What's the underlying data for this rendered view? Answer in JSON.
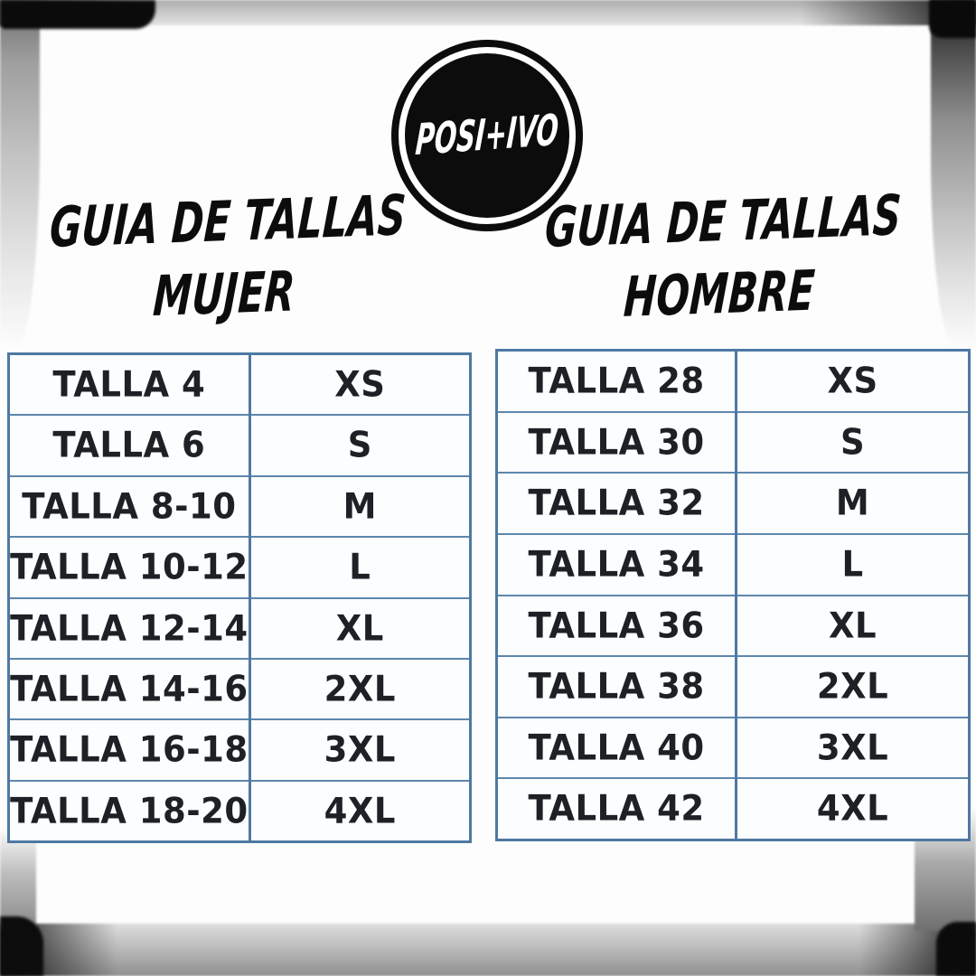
{
  "logo": {
    "brand": "POSI+IVO"
  },
  "titles": {
    "mujer": {
      "line1": "GUIA DE TALLAS",
      "line2": "MUJER"
    },
    "hombre": {
      "line1": "GUIA DE TALLAS",
      "line2": "HOMBRE"
    }
  },
  "tables": {
    "mujer": {
      "rows": [
        {
          "talla": "TALLA 4",
          "size": "XS"
        },
        {
          "talla": "TALLA 6",
          "size": "S"
        },
        {
          "talla": "TALLA 8-10",
          "size": "M"
        },
        {
          "talla": "TALLA 10-12",
          "size": "L"
        },
        {
          "talla": "TALLA 12-14",
          "size": "XL"
        },
        {
          "talla": "TALLA 14-16",
          "size": "2XL"
        },
        {
          "talla": "TALLA 16-18",
          "size": "3XL"
        },
        {
          "talla": "TALLA 18-20",
          "size": "4XL"
        }
      ]
    },
    "hombre": {
      "rows": [
        {
          "talla": "TALLA 28",
          "size": "XS"
        },
        {
          "talla": "TALLA 30",
          "size": "S"
        },
        {
          "talla": "TALLA 32",
          "size": "M"
        },
        {
          "talla": "TALLA 34",
          "size": "L"
        },
        {
          "talla": "TALLA 36",
          "size": "XL"
        },
        {
          "talla": "TALLA 38",
          "size": "2XL"
        },
        {
          "talla": "TALLA 40",
          "size": "3XL"
        },
        {
          "talla": "TALLA 42",
          "size": "4XL"
        }
      ]
    }
  },
  "colors": {
    "table_border": "#4e79a2",
    "table_line": "#5d87ad",
    "cell_text": "#1d2126",
    "title_text": "#0c0c0c",
    "logo_bg": "#0c0c0c",
    "logo_text": "#ffffff"
  }
}
